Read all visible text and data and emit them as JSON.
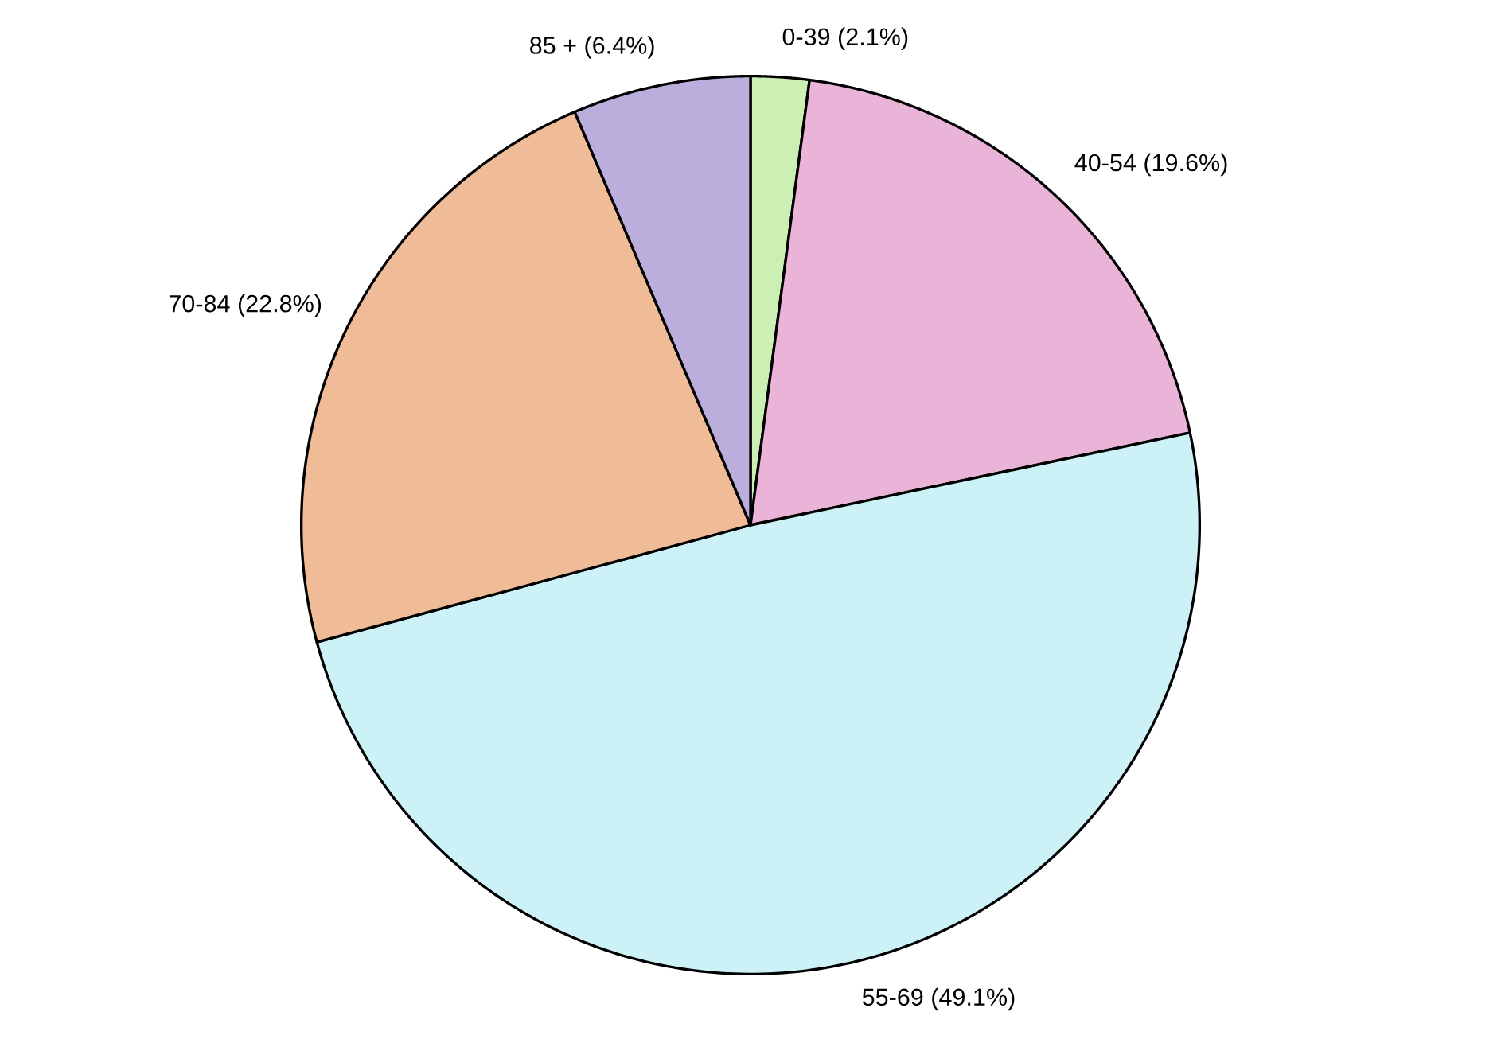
{
  "chart_data": {
    "type": "pie",
    "categories": [
      "0-39",
      "40-54",
      "55-69",
      "70-84",
      "85 +"
    ],
    "values": [
      2.1,
      19.6,
      49.1,
      22.8,
      6.4
    ],
    "value_labels": [
      "(2.1%)",
      "(19.6%)",
      "(49.1%)",
      "(22.8%)",
      "(6.4%)"
    ],
    "colors": [
      "#ccf0b4",
      "#eab4d8",
      "#ccf2f8",
      "#f0bc98",
      "#bcaedc"
    ],
    "legend": false
  }
}
